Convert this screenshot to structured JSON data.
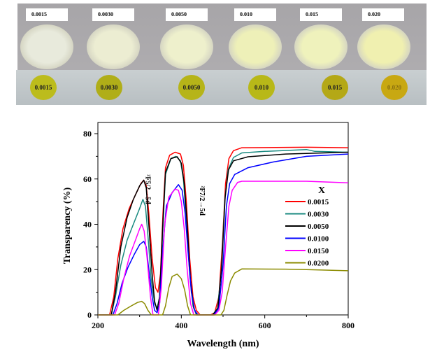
{
  "photo": {
    "dish_labels": [
      "0.0015",
      "0.0030",
      "0.0050",
      "0.010",
      "0.015",
      "0.020"
    ],
    "disc_labels": [
      "0.0015",
      "0.0030",
      "0.0050",
      "0.010",
      "0.015",
      "0.020"
    ],
    "dish_colors": [
      "#e8eadc",
      "#ecedd2",
      "#eef0cc",
      "#eef0b8",
      "#eff2bc",
      "#f0f0b0"
    ],
    "disc_colors": [
      "#bcbc1c",
      "#b0ae18",
      "#b6b418",
      "#b8b818",
      "#b4a816",
      "#c8a812"
    ]
  },
  "chart_data": {
    "type": "line",
    "xlabel": "Wavelength (nm)",
    "ylabel": "Transparency (%)",
    "xlim": [
      200,
      800
    ],
    "ylim": [
      0,
      80
    ],
    "xticks": [
      "200",
      "400",
      "600",
      "800"
    ],
    "yticks": [
      "0",
      "20",
      "40",
      "60",
      "80"
    ],
    "grid": false,
    "legend": {
      "title": "X",
      "placement": "right"
    },
    "annotations": [
      {
        "text": "²F5/2→5d",
        "x": 315,
        "y": 62
      },
      {
        "text": "²F7/2→5d",
        "x": 445,
        "y": 57
      }
    ],
    "series": [
      {
        "name": "0.0015",
        "color": "#ff0000",
        "points": [
          [
            200,
            0
          ],
          [
            228,
            0
          ],
          [
            238,
            8
          ],
          [
            248,
            25
          ],
          [
            260,
            38
          ],
          [
            275,
            47
          ],
          [
            290,
            53
          ],
          [
            303,
            58
          ],
          [
            310,
            59.5
          ],
          [
            316,
            57
          ],
          [
            322,
            45
          ],
          [
            330,
            25
          ],
          [
            338,
            12
          ],
          [
            344,
            10
          ],
          [
            350,
            18
          ],
          [
            356,
            45
          ],
          [
            362,
            65
          ],
          [
            372,
            70.5
          ],
          [
            385,
            71.8
          ],
          [
            398,
            71
          ],
          [
            405,
            66
          ],
          [
            412,
            50
          ],
          [
            420,
            25
          ],
          [
            428,
            8
          ],
          [
            436,
            2
          ],
          [
            445,
            0
          ],
          [
            470,
            0
          ],
          [
            480,
            1
          ],
          [
            490,
            8
          ],
          [
            498,
            30
          ],
          [
            506,
            58
          ],
          [
            514,
            69
          ],
          [
            525,
            72.5
          ],
          [
            545,
            73.8
          ],
          [
            700,
            74
          ],
          [
            800,
            73.8
          ]
        ]
      },
      {
        "name": "0.0030",
        "color": "#1a8a80",
        "points": [
          [
            200,
            0
          ],
          [
            232,
            0
          ],
          [
            242,
            8
          ],
          [
            255,
            22
          ],
          [
            270,
            33
          ],
          [
            285,
            40
          ],
          [
            300,
            47
          ],
          [
            308,
            51
          ],
          [
            314,
            48
          ],
          [
            320,
            35
          ],
          [
            328,
            15
          ],
          [
            336,
            5
          ],
          [
            342,
            3
          ],
          [
            348,
            8
          ],
          [
            355,
            35
          ],
          [
            362,
            62
          ],
          [
            375,
            69
          ],
          [
            387,
            70
          ],
          [
            398,
            68
          ],
          [
            405,
            60
          ],
          [
            412,
            42
          ],
          [
            420,
            18
          ],
          [
            428,
            4
          ],
          [
            436,
            0
          ],
          [
            475,
            0
          ],
          [
            487,
            3
          ],
          [
            496,
            20
          ],
          [
            504,
            50
          ],
          [
            512,
            64
          ],
          [
            525,
            69.5
          ],
          [
            545,
            71.5
          ],
          [
            600,
            72.2
          ],
          [
            700,
            73
          ],
          [
            720,
            72.2
          ],
          [
            800,
            71.8
          ]
        ]
      },
      {
        "name": "0.0050",
        "color": "#000000",
        "points": [
          [
            200,
            0
          ],
          [
            232,
            0
          ],
          [
            242,
            10
          ],
          [
            255,
            30
          ],
          [
            270,
            43
          ],
          [
            285,
            51
          ],
          [
            300,
            57
          ],
          [
            310,
            59.5
          ],
          [
            316,
            56
          ],
          [
            322,
            40
          ],
          [
            330,
            18
          ],
          [
            336,
            6
          ],
          [
            342,
            2
          ],
          [
            348,
            8
          ],
          [
            355,
            38
          ],
          [
            362,
            63
          ],
          [
            375,
            69
          ],
          [
            390,
            69.8
          ],
          [
            400,
            67
          ],
          [
            407,
            58
          ],
          [
            414,
            40
          ],
          [
            422,
            15
          ],
          [
            430,
            3
          ],
          [
            438,
            0
          ],
          [
            475,
            0
          ],
          [
            488,
            3
          ],
          [
            497,
            22
          ],
          [
            505,
            52
          ],
          [
            513,
            64
          ],
          [
            525,
            68
          ],
          [
            560,
            69.8
          ],
          [
            650,
            71
          ],
          [
            800,
            71.8
          ]
        ]
      },
      {
        "name": "0.0100",
        "color": "#0000ff",
        "points": [
          [
            200,
            0
          ],
          [
            236,
            0
          ],
          [
            246,
            5
          ],
          [
            258,
            14
          ],
          [
            272,
            21
          ],
          [
            288,
            27
          ],
          [
            300,
            31
          ],
          [
            310,
            32.5
          ],
          [
            316,
            30
          ],
          [
            322,
            20
          ],
          [
            330,
            8
          ],
          [
            336,
            2
          ],
          [
            342,
            1
          ],
          [
            348,
            5
          ],
          [
            356,
            30
          ],
          [
            364,
            48
          ],
          [
            378,
            54
          ],
          [
            393,
            57.5
          ],
          [
            402,
            55
          ],
          [
            409,
            45
          ],
          [
            416,
            28
          ],
          [
            424,
            10
          ],
          [
            432,
            2
          ],
          [
            440,
            0
          ],
          [
            478,
            0
          ],
          [
            490,
            3
          ],
          [
            500,
            22
          ],
          [
            508,
            48
          ],
          [
            516,
            58
          ],
          [
            528,
            62
          ],
          [
            560,
            65
          ],
          [
            620,
            67.5
          ],
          [
            700,
            70
          ],
          [
            800,
            71
          ]
        ]
      },
      {
        "name": "0.0150",
        "color": "#ff00ff",
        "points": [
          [
            200,
            0
          ],
          [
            240,
            0
          ],
          [
            250,
            5
          ],
          [
            262,
            16
          ],
          [
            276,
            26
          ],
          [
            290,
            33
          ],
          [
            300,
            38
          ],
          [
            305,
            40
          ],
          [
            311,
            37
          ],
          [
            318,
            25
          ],
          [
            326,
            8
          ],
          [
            332,
            0
          ],
          [
            345,
            0
          ],
          [
            352,
            12
          ],
          [
            360,
            40
          ],
          [
            370,
            52
          ],
          [
            385,
            55.5
          ],
          [
            393,
            55
          ],
          [
            400,
            50
          ],
          [
            407,
            38
          ],
          [
            414,
            20
          ],
          [
            422,
            5
          ],
          [
            430,
            0
          ],
          [
            480,
            0
          ],
          [
            490,
            2
          ],
          [
            498,
            10
          ],
          [
            506,
            30
          ],
          [
            514,
            48
          ],
          [
            522,
            55
          ],
          [
            535,
            58.5
          ],
          [
            545,
            59
          ],
          [
            700,
            59
          ],
          [
            800,
            58.3
          ]
        ]
      },
      {
        "name": "0.0200",
        "color": "#8b8b00",
        "points": [
          [
            200,
            0
          ],
          [
            248,
            0
          ],
          [
            262,
            2
          ],
          [
            280,
            4
          ],
          [
            295,
            5.5
          ],
          [
            305,
            6
          ],
          [
            312,
            5
          ],
          [
            320,
            2
          ],
          [
            328,
            0
          ],
          [
            355,
            0
          ],
          [
            362,
            4
          ],
          [
            370,
            12
          ],
          [
            378,
            17
          ],
          [
            390,
            18
          ],
          [
            400,
            16
          ],
          [
            408,
            11
          ],
          [
            415,
            4
          ],
          [
            422,
            0
          ],
          [
            495,
            0
          ],
          [
            502,
            2
          ],
          [
            510,
            9
          ],
          [
            518,
            15
          ],
          [
            528,
            18.5
          ],
          [
            545,
            20.3
          ],
          [
            650,
            20.2
          ],
          [
            700,
            20
          ],
          [
            800,
            19.5
          ]
        ]
      }
    ]
  }
}
